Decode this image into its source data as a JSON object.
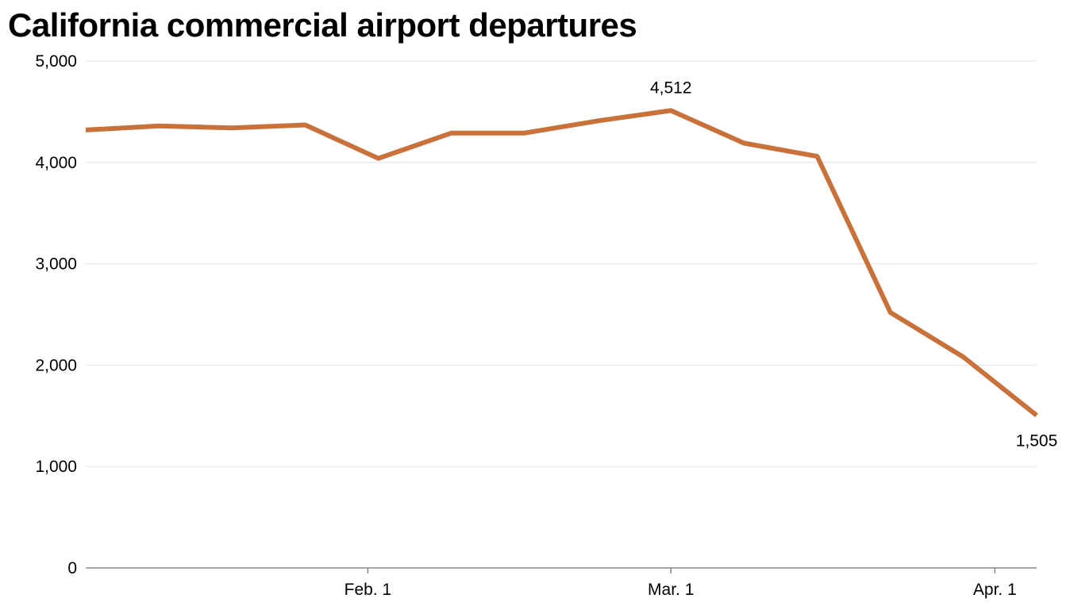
{
  "chart_data": {
    "type": "line",
    "title": "California commercial airport departures",
    "xlabel": "",
    "ylabel": "",
    "ylim": [
      0,
      5000
    ],
    "y_ticks": [
      0,
      1000,
      2000,
      3000,
      4000,
      5000
    ],
    "y_tick_labels": [
      "0",
      "1,000",
      "2,000",
      "3,000",
      "4,000",
      "5,000"
    ],
    "xlim": [
      "2020-01-05",
      "2020-04-05"
    ],
    "x_ticks": [
      {
        "date": "2020-02-01",
        "label": "Feb. 1"
      },
      {
        "date": "2020-03-01",
        "label": "Mar. 1"
      },
      {
        "date": "2020-04-01",
        "label": "Apr. 1"
      }
    ],
    "grid": true,
    "legend": "none",
    "color": "#c8713a",
    "series": [
      {
        "x": [
          "2020-01-05",
          "2020-01-12",
          "2020-01-19",
          "2020-01-26",
          "2020-02-02",
          "2020-02-09",
          "2020-02-16",
          "2020-02-23",
          "2020-03-01",
          "2020-03-08",
          "2020-03-15",
          "2020-03-22",
          "2020-03-29",
          "2020-04-05"
        ],
        "values": [
          4320,
          4360,
          4340,
          4370,
          4040,
          4290,
          4290,
          4410,
          4512,
          4190,
          4060,
          2520,
          2080,
          1505
        ]
      }
    ],
    "annotations": [
      {
        "x": "2020-03-01",
        "value": 4512,
        "text": "4,512",
        "position": "above"
      },
      {
        "x": "2020-04-05",
        "value": 1505,
        "text": "1,505",
        "position": "below"
      }
    ]
  }
}
